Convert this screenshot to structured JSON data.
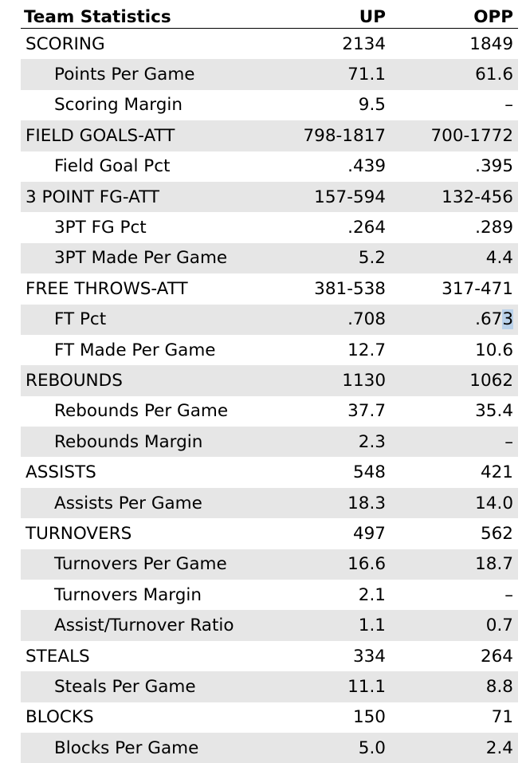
{
  "table": {
    "header": {
      "label": "Team Statistics",
      "up": "UP",
      "opp": "OPP"
    },
    "rows": [
      {
        "label": "SCORING",
        "up": "2134",
        "opp": "1849",
        "indent": false,
        "shade": false
      },
      {
        "label": "Points Per Game",
        "up": "71.1",
        "opp": "61.6",
        "indent": true,
        "shade": true
      },
      {
        "label": "Scoring Margin",
        "up": "9.5",
        "opp": "–",
        "indent": true,
        "shade": false
      },
      {
        "label": "FIELD GOALS-ATT",
        "up": "798-1817",
        "opp": "700-1772",
        "indent": false,
        "shade": true
      },
      {
        "label": "Field Goal Pct",
        "up": ".439",
        "opp": ".395",
        "indent": true,
        "shade": false
      },
      {
        "label": "3 POINT FG-ATT",
        "up": "157-594",
        "opp": "132-456",
        "indent": false,
        "shade": true
      },
      {
        "label": "3PT FG Pct",
        "up": ".264",
        "opp": ".289",
        "indent": true,
        "shade": false
      },
      {
        "label": "3PT Made Per Game",
        "up": "5.2",
        "opp": "4.4",
        "indent": true,
        "shade": true
      },
      {
        "label": "FREE THROWS-ATT",
        "up": "381-538",
        "opp": "317-471",
        "indent": false,
        "shade": false
      },
      {
        "label": "FT Pct",
        "up": ".708",
        "opp": ".673",
        "indent": true,
        "shade": true,
        "opp_highlight_suffix": "3"
      },
      {
        "label": "FT Made Per Game",
        "up": "12.7",
        "opp": "10.6",
        "indent": true,
        "shade": false
      },
      {
        "label": "REBOUNDS",
        "up": "1130",
        "opp": "1062",
        "indent": false,
        "shade": true
      },
      {
        "label": "Rebounds Per Game",
        "up": "37.7",
        "opp": "35.4",
        "indent": true,
        "shade": false
      },
      {
        "label": "Rebounds Margin",
        "up": "2.3",
        "opp": "–",
        "indent": true,
        "shade": true
      },
      {
        "label": "ASSISTS",
        "up": "548",
        "opp": "421",
        "indent": false,
        "shade": false
      },
      {
        "label": "Assists Per Game",
        "up": "18.3",
        "opp": "14.0",
        "indent": true,
        "shade": true
      },
      {
        "label": "TURNOVERS",
        "up": "497",
        "opp": "562",
        "indent": false,
        "shade": false
      },
      {
        "label": "Turnovers Per Game",
        "up": "16.6",
        "opp": "18.7",
        "indent": true,
        "shade": true
      },
      {
        "label": "Turnovers Margin",
        "up": "2.1",
        "opp": "–",
        "indent": true,
        "shade": false
      },
      {
        "label": "Assist/Turnover Ratio",
        "up": "1.1",
        "opp": "0.7",
        "indent": true,
        "shade": true
      },
      {
        "label": "STEALS",
        "up": "334",
        "opp": "264",
        "indent": false,
        "shade": false
      },
      {
        "label": "Steals Per Game",
        "up": "11.1",
        "opp": "8.8",
        "indent": true,
        "shade": true
      },
      {
        "label": "BLOCKS",
        "up": "150",
        "opp": "71",
        "indent": false,
        "shade": false
      },
      {
        "label": "Blocks Per Game",
        "up": "5.0",
        "opp": "2.4",
        "indent": true,
        "shade": true
      }
    ]
  }
}
